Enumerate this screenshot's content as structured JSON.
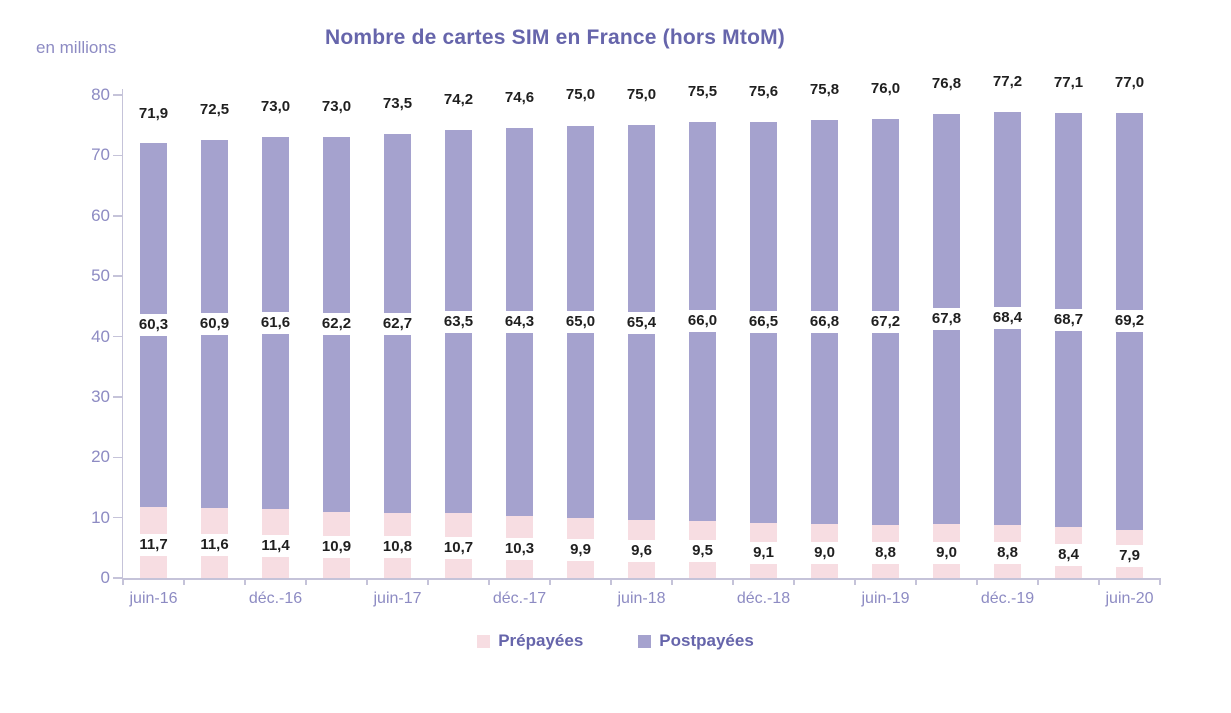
{
  "title": "Nombre de cartes SIM en France (hors MtoM)",
  "unit_label": "en millions",
  "colors": {
    "prepaid_bar": "#f7dde2",
    "postpaid_bar": "#a5a2ce",
    "title_text": "#6665ab",
    "axis_text": "#8d8bc3",
    "axis_line": "#c5c3d9",
    "data_label_text": "#1f1f1f"
  },
  "legend": [
    {
      "label": "Prépayées",
      "color": "#f7dde2"
    },
    {
      "label": "Postpayées",
      "color": "#a5a2ce"
    }
  ],
  "chart_data": {
    "type": "bar",
    "stacked": true,
    "title": "Nombre de cartes SIM en France (hors MtoM)",
    "ylabel": "en millions",
    "xlabel": "",
    "ylim": [
      0,
      80
    ],
    "yticks": [
      0,
      10,
      20,
      30,
      40,
      50,
      60,
      70,
      80
    ],
    "grid": false,
    "legend_position": "bottom",
    "categories": [
      "juin-16",
      "",
      "déc.-16",
      "",
      "juin-17",
      "",
      "déc.-17",
      "",
      "juin-18",
      "",
      "déc.-18",
      "",
      "juin-19",
      "",
      "déc.-19",
      "",
      "juin-20"
    ],
    "series": [
      {
        "name": "Prépayées",
        "color": "#f7dde2",
        "values": [
          11.7,
          11.6,
          11.4,
          10.9,
          10.8,
          10.7,
          10.3,
          9.9,
          9.6,
          9.5,
          9.1,
          9.0,
          8.8,
          9.0,
          8.8,
          8.4,
          7.9
        ],
        "labels": [
          "11,7",
          "11,6",
          "11,4",
          "10,9",
          "10,8",
          "10,7",
          "10,3",
          "9,9",
          "9,6",
          "9,5",
          "9,1",
          "9,0",
          "8,8",
          "9,0",
          "8,8",
          "8,4",
          "7,9"
        ]
      },
      {
        "name": "Postpayées",
        "color": "#a5a2ce",
        "values": [
          60.3,
          60.9,
          61.6,
          62.2,
          62.7,
          63.5,
          64.3,
          65.0,
          65.4,
          66.0,
          66.5,
          66.8,
          67.2,
          67.8,
          68.4,
          68.7,
          69.2
        ],
        "labels": [
          "60,3",
          "60,9",
          "61,6",
          "62,2",
          "62,7",
          "63,5",
          "64,3",
          "65,0",
          "65,4",
          "66,0",
          "66,5",
          "66,8",
          "67,2",
          "67,8",
          "68,4",
          "68,7",
          "69,2"
        ]
      }
    ],
    "totals": [
      71.9,
      72.5,
      73.0,
      73.0,
      73.5,
      74.2,
      74.6,
      75.0,
      75.0,
      75.5,
      75.6,
      75.8,
      76.0,
      76.8,
      77.2,
      77.1,
      77.0
    ],
    "totals_labels": [
      "71,9",
      "72,5",
      "73,0",
      "73,0",
      "73,5",
      "74,2",
      "74,6",
      "75,0",
      "75,0",
      "75,5",
      "75,6",
      "75,8",
      "76,0",
      "76,8",
      "77,2",
      "77,1",
      "77,0"
    ]
  }
}
